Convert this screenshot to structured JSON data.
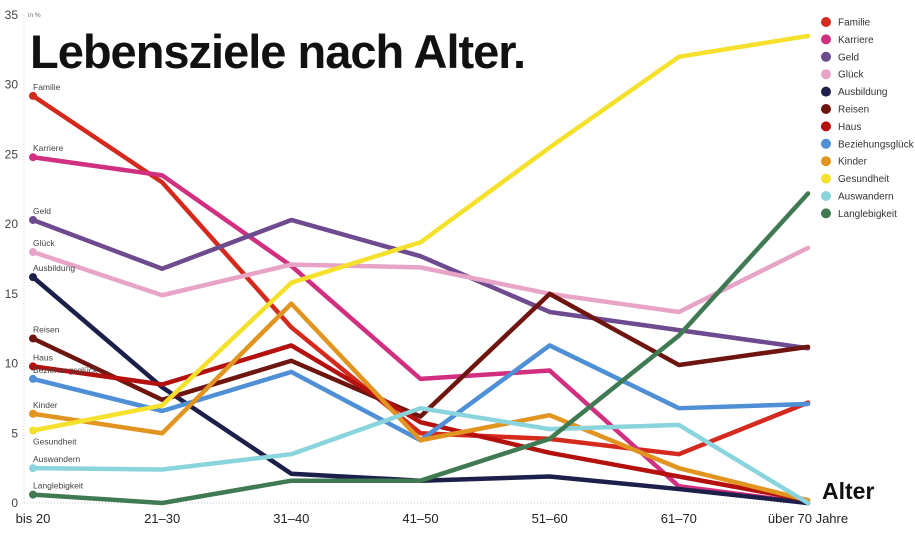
{
  "chart_data": {
    "type": "line",
    "title": "Lebensziele nach Alter.",
    "ylabel": "in %",
    "xlabel": "Alter",
    "ylim": [
      0,
      35
    ],
    "yticks": [
      0,
      5,
      10,
      15,
      20,
      25,
      30,
      35
    ],
    "grid": false,
    "legend_placement": "top-right",
    "categories": [
      "bis 20",
      "21–30",
      "31–40",
      "41–50",
      "51–60",
      "61–70",
      "über 70 Jahre"
    ],
    "series": [
      {
        "name": "Familie",
        "color": "#d42a1e",
        "values": [
          29.2,
          23.0,
          12.6,
          5.0,
          4.6,
          3.5,
          7.2
        ]
      },
      {
        "name": "Karriere",
        "color": "#d12f7f",
        "values": [
          24.8,
          23.5,
          17.0,
          8.9,
          9.5,
          1.2,
          0
        ]
      },
      {
        "name": "Geld",
        "color": "#6e4a8e",
        "values": [
          20.3,
          16.8,
          20.3,
          17.7,
          13.7,
          12.4,
          11.1
        ]
      },
      {
        "name": "Glück",
        "color": "#e7a4c6",
        "values": [
          18.0,
          14.9,
          17.1,
          16.9,
          15.0,
          13.7,
          18.3
        ]
      },
      {
        "name": "Ausbildung",
        "color": "#1c1f4a",
        "values": [
          16.2,
          8.3,
          2.1,
          1.6,
          1.9,
          1.0,
          0
        ]
      },
      {
        "name": "Reisen",
        "color": "#6e1510",
        "values": [
          11.8,
          7.4,
          10.2,
          6.2,
          15.0,
          9.9,
          11.2
        ]
      },
      {
        "name": "Haus",
        "color": "#b3100e",
        "values": [
          9.8,
          8.5,
          11.3,
          5.8,
          3.6,
          1.9,
          0.2
        ]
      },
      {
        "name": "Beziehungsglück",
        "color": "#4f8fd6",
        "values": [
          8.9,
          6.6,
          9.4,
          4.5,
          11.3,
          6.8,
          7.1
        ]
      },
      {
        "name": "Kinder",
        "color": "#e29420",
        "values": [
          6.4,
          5.0,
          14.3,
          4.5,
          6.3,
          2.5,
          0.2
        ]
      },
      {
        "name": "Gesundheit",
        "color": "#f5e02c",
        "values": [
          5.2,
          7.0,
          15.8,
          18.7,
          25.5,
          32.0,
          33.5
        ]
      },
      {
        "name": "Auswandern",
        "color": "#8ad5dd",
        "values": [
          2.5,
          2.4,
          3.5,
          6.8,
          5.3,
          5.6,
          0
        ]
      },
      {
        "name": "Langlebigkeit",
        "color": "#3f7a52",
        "values": [
          0.6,
          0,
          1.6,
          1.6,
          4.6,
          12.0,
          22.2
        ]
      }
    ]
  }
}
